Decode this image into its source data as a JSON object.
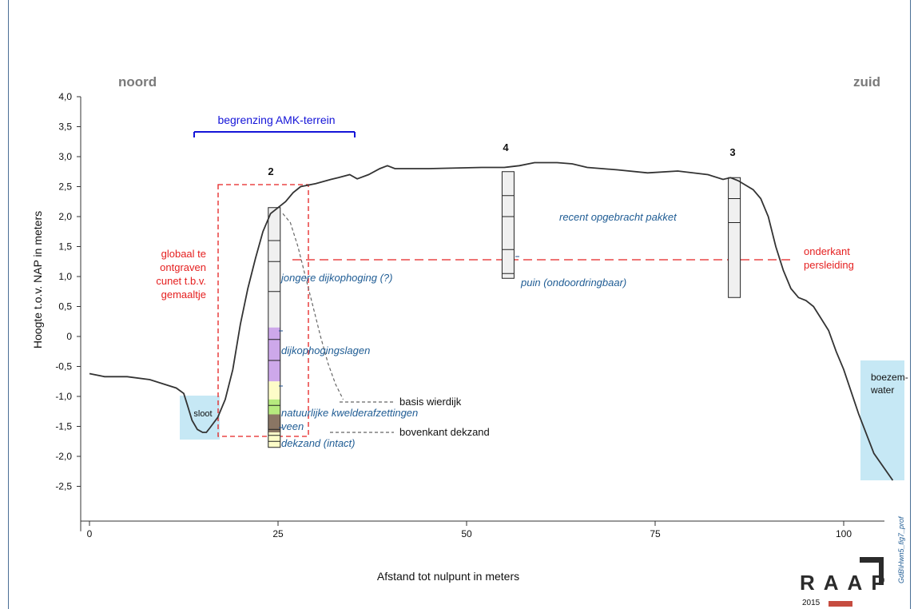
{
  "labels": {
    "north": "noord",
    "south": "zuid",
    "y_axis": "Hoogte t.o.v. NAP in meters",
    "x_axis": "Afstand tot nulpunt in meters",
    "amk": "begrenzing AMK-terrein",
    "excavation": [
      "globaal te",
      "ontgraven",
      "cunet t.b.v.",
      "gemaaltje"
    ],
    "pipeline": [
      "onderkant",
      "persleiding"
    ],
    "ditch": "sloot",
    "water": [
      "boezem-",
      "water"
    ],
    "recent": "recent opgebracht pakket",
    "rubble": "puin (ondoordringbaar)",
    "young_dike": "jongere dijkophoging (?)",
    "dike_layers": "dijkophogingslagen",
    "tidal": "natuurlijke kwelderafzettingen",
    "peat": "veen",
    "cover_sand": "dekzand (intact)",
    "base_dike": "basis wierdijk",
    "top_sand": "bovenkant dekzand",
    "logo": "RAAP",
    "year": "2015",
    "fig_code": "GdB\\Hwn5_fig7_prof"
  },
  "y_ticks": [
    "4,0",
    "3,5",
    "3,0",
    "2,5",
    "2,0",
    "1,5",
    "1,0",
    "0,5",
    "0",
    "-0,5",
    "-1,0",
    "-1,5",
    "-2,0",
    "-2,5"
  ],
  "x_ticks": [
    "0",
    "25",
    "50",
    "75",
    "100"
  ],
  "borings": [
    {
      "id": "2",
      "x": 24.5,
      "top": 2.15,
      "bottom": -1.85,
      "layers": [
        {
          "from": 2.15,
          "to": 0.15,
          "color": "#f0f0f0",
          "name": "jongere dijkophoging"
        },
        {
          "from": 0.15,
          "to": -0.75,
          "color": "#cda8ea",
          "name": "dijkophogingslagen"
        },
        {
          "from": -0.75,
          "to": -1.05,
          "color": "#fdfcc8",
          "name": "basis"
        },
        {
          "from": -1.05,
          "to": -1.3,
          "color": "#b6ea7e",
          "name": "kwelder"
        },
        {
          "from": -1.3,
          "to": -1.6,
          "color": "#8a7664",
          "name": "veen"
        },
        {
          "from": -1.6,
          "to": -1.85,
          "color": "#fdfcc8",
          "name": "dekzand"
        }
      ],
      "lines": [
        1.6,
        1.25,
        0.75,
        -0.05,
        -0.4,
        -1.15,
        -1.55,
        -1.65,
        -1.75
      ]
    },
    {
      "id": "4",
      "x": 55.5,
      "top": 2.75,
      "bottom": 0.97,
      "layers": [
        {
          "from": 2.75,
          "to": 0.97,
          "color": "#f0f0f0",
          "name": "recent"
        }
      ],
      "lines": [
        2.35,
        2.0,
        1.45,
        1.05
      ]
    },
    {
      "id": "3",
      "x": 85.5,
      "top": 2.65,
      "bottom": 0.65,
      "layers": [
        {
          "from": 2.65,
          "to": 0.65,
          "color": "#f0f0f0",
          "name": "recent"
        }
      ],
      "lines": [
        2.3,
        1.9
      ]
    }
  ],
  "surface": [
    [
      0,
      -0.62
    ],
    [
      2,
      -0.67
    ],
    [
      5,
      -0.67
    ],
    [
      8,
      -0.72
    ],
    [
      10,
      -0.8
    ],
    [
      11.5,
      -0.86
    ],
    [
      12.5,
      -0.95
    ],
    [
      13,
      -1.15
    ],
    [
      13.6,
      -1.4
    ],
    [
      14.3,
      -1.55
    ],
    [
      15,
      -1.6
    ],
    [
      15.5,
      -1.6
    ],
    [
      16,
      -1.52
    ],
    [
      17,
      -1.35
    ],
    [
      18,
      -1.05
    ],
    [
      19,
      -0.55
    ],
    [
      20,
      0.2
    ],
    [
      21,
      0.8
    ],
    [
      22,
      1.3
    ],
    [
      23,
      1.75
    ],
    [
      24,
      2.05
    ],
    [
      25,
      2.15
    ],
    [
      26,
      2.25
    ],
    [
      27,
      2.4
    ],
    [
      28,
      2.5
    ],
    [
      30,
      2.55
    ],
    [
      32,
      2.62
    ],
    [
      33,
      2.65
    ],
    [
      34.5,
      2.7
    ],
    [
      35.5,
      2.63
    ],
    [
      37,
      2.7
    ],
    [
      38.5,
      2.8
    ],
    [
      39.5,
      2.85
    ],
    [
      40.5,
      2.8
    ],
    [
      45,
      2.8
    ],
    [
      52,
      2.82
    ],
    [
      55,
      2.82
    ],
    [
      57,
      2.85
    ],
    [
      59,
      2.9
    ],
    [
      62,
      2.9
    ],
    [
      64,
      2.88
    ],
    [
      66,
      2.82
    ],
    [
      70,
      2.78
    ],
    [
      74,
      2.73
    ],
    [
      78,
      2.76
    ],
    [
      82,
      2.7
    ],
    [
      84,
      2.62
    ],
    [
      85,
      2.65
    ],
    [
      86,
      2.6
    ],
    [
      88,
      2.45
    ],
    [
      89,
      2.3
    ],
    [
      90,
      2.0
    ],
    [
      91,
      1.5
    ],
    [
      92,
      1.1
    ],
    [
      93,
      0.8
    ],
    [
      94,
      0.65
    ],
    [
      95,
      0.6
    ],
    [
      96,
      0.5
    ],
    [
      97,
      0.3
    ],
    [
      98,
      0.1
    ],
    [
      99,
      -0.25
    ],
    [
      100,
      -0.55
    ],
    [
      102,
      -1.3
    ],
    [
      104,
      -1.95
    ],
    [
      106.5,
      -2.4
    ]
  ],
  "top_sand_curve": [
    [
      25,
      2.05
    ],
    [
      26,
      1.9
    ],
    [
      27,
      1.5
    ],
    [
      28,
      1.0
    ],
    [
      29,
      0.5
    ],
    [
      30,
      0.0
    ],
    [
      31,
      -0.45
    ],
    [
      32,
      -0.8
    ],
    [
      33,
      -1.05
    ]
  ]
}
